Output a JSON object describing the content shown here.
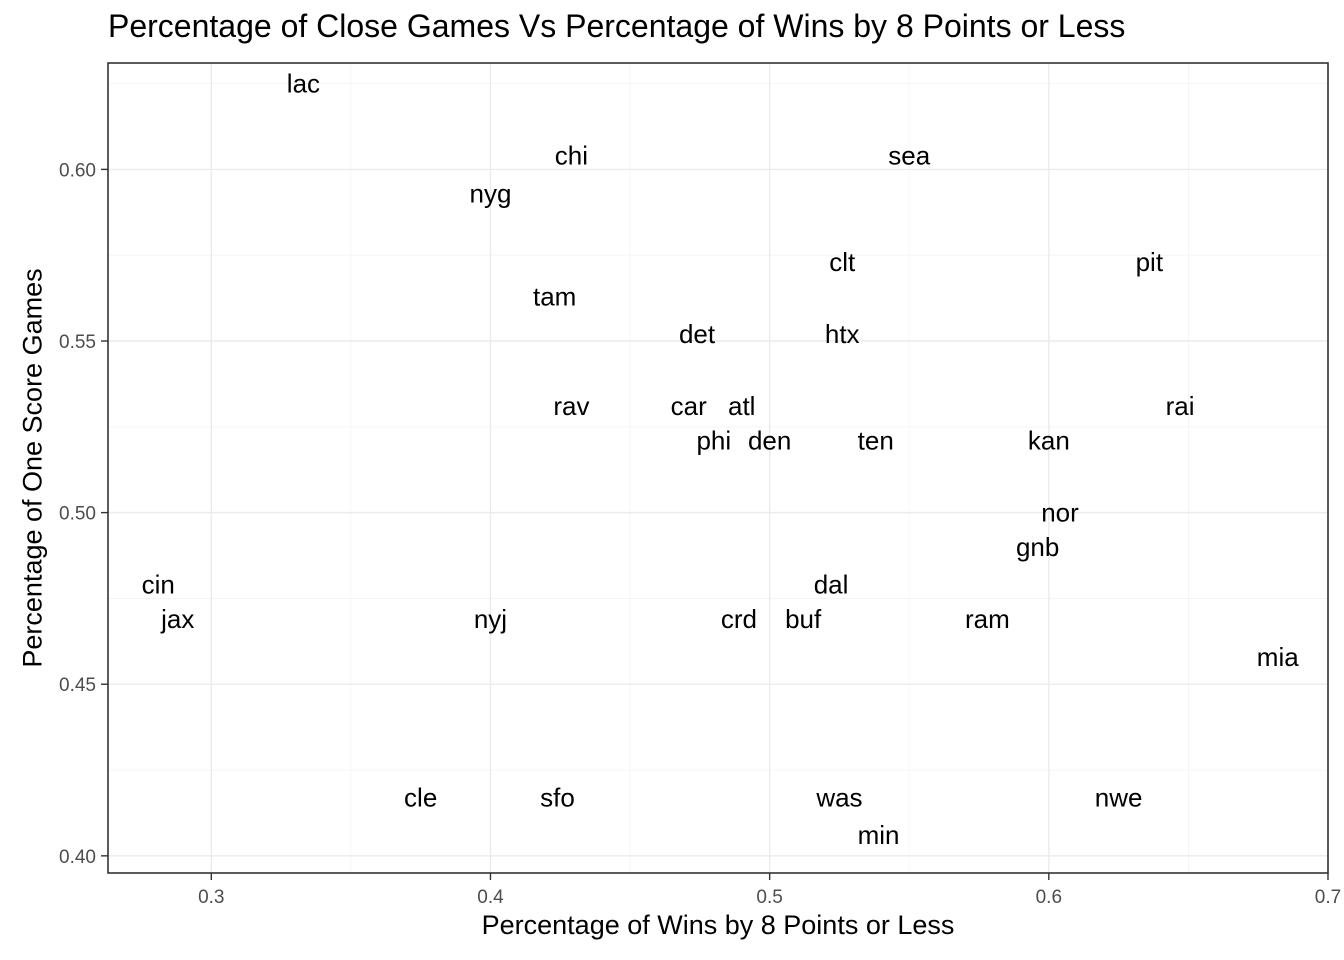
{
  "chart_data": {
    "type": "scatter",
    "title": "Percentage of Close Games Vs Percentage of Wins by 8 Points or Less",
    "xlabel": "Percentage of Wins by 8 Points or Less",
    "ylabel": "Percentage of One Score Games",
    "xlim": [
      0.263,
      0.7
    ],
    "ylim": [
      0.395,
      0.631
    ],
    "xticks": [
      "0.3",
      "0.4",
      "0.5",
      "0.6",
      "0.7"
    ],
    "yticks": [
      "0.40",
      "0.45",
      "0.50",
      "0.55",
      "0.60"
    ],
    "grid": true,
    "points": [
      {
        "label": "lac",
        "x": 0.333,
        "y": 0.625
      },
      {
        "label": "chi",
        "x": 0.429,
        "y": 0.604
      },
      {
        "label": "sea",
        "x": 0.55,
        "y": 0.604
      },
      {
        "label": "nyg",
        "x": 0.4,
        "y": 0.593
      },
      {
        "label": "clt",
        "x": 0.526,
        "y": 0.573
      },
      {
        "label": "pit",
        "x": 0.636,
        "y": 0.573
      },
      {
        "label": "tam",
        "x": 0.423,
        "y": 0.563
      },
      {
        "label": "det",
        "x": 0.474,
        "y": 0.552
      },
      {
        "label": "htx",
        "x": 0.526,
        "y": 0.552
      },
      {
        "label": "rav",
        "x": 0.429,
        "y": 0.531
      },
      {
        "label": "car",
        "x": 0.471,
        "y": 0.531
      },
      {
        "label": "atl",
        "x": 0.49,
        "y": 0.531
      },
      {
        "label": "rai",
        "x": 0.647,
        "y": 0.531
      },
      {
        "label": "phi",
        "x": 0.48,
        "y": 0.521
      },
      {
        "label": "den",
        "x": 0.5,
        "y": 0.521
      },
      {
        "label": "ten",
        "x": 0.538,
        "y": 0.521
      },
      {
        "label": "kan",
        "x": 0.6,
        "y": 0.521
      },
      {
        "label": "nor",
        "x": 0.604,
        "y": 0.5
      },
      {
        "label": "gnb",
        "x": 0.596,
        "y": 0.49
      },
      {
        "label": "cin",
        "x": 0.281,
        "y": 0.479
      },
      {
        "label": "dal",
        "x": 0.522,
        "y": 0.479
      },
      {
        "label": "jax",
        "x": 0.288,
        "y": 0.469
      },
      {
        "label": "nyj",
        "x": 0.4,
        "y": 0.469
      },
      {
        "label": "crd",
        "x": 0.489,
        "y": 0.469
      },
      {
        "label": "buf",
        "x": 0.512,
        "y": 0.469
      },
      {
        "label": "ram",
        "x": 0.578,
        "y": 0.469
      },
      {
        "label": "mia",
        "x": 0.682,
        "y": 0.458
      },
      {
        "label": "cle",
        "x": 0.375,
        "y": 0.417
      },
      {
        "label": "sfo",
        "x": 0.424,
        "y": 0.417
      },
      {
        "label": "was",
        "x": 0.525,
        "y": 0.417
      },
      {
        "label": "nwe",
        "x": 0.625,
        "y": 0.417
      },
      {
        "label": "min",
        "x": 0.539,
        "y": 0.406
      }
    ]
  }
}
